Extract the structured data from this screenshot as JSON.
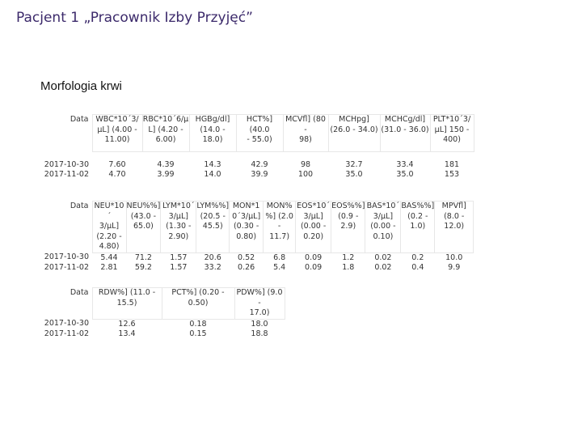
{
  "page": {
    "title": "Pacjent 1 „Pracownik Izby Przyjęć”"
  },
  "section": {
    "title": "Morfologia krwi"
  },
  "tables": [
    {
      "headers": [
        "Data",
        "WBC*10´3/\nµL] (4.00 -\n11.00)",
        "RBC*10´6/µ\nL] (4.20 -\n6.00)",
        "HGBg/dl]\n(14.0 - 18.0)",
        "HCT%] (40.0\n- 55.0)",
        "MCVfl] (80 -\n98)",
        "MCHpg]\n(26.0 - 34.0)",
        "MCHCg/dl]\n(31.0 - 36.0)",
        "PLT*10´3/\nµL] 150 -\n400)"
      ],
      "rows": [
        [
          "2017-10-30",
          "7.60",
          "4.39",
          "14.3",
          "42.9",
          "98",
          "32.7",
          "33.4",
          "181"
        ],
        [
          "2017-11-02",
          "4.70",
          "3.99",
          "14.0",
          "39.9",
          "100",
          "35.0",
          "35.0",
          "153"
        ]
      ]
    },
    {
      "headers": [
        "Data",
        "NEU*10´\n3/µL]\n(2.20 -\n4.80)",
        "NEU%%]\n(43.0 -\n65.0)",
        "LYM*10´\n3/µL]\n(1.30 -\n2.90)",
        "LYM%%]\n(20.5 -\n45.5)",
        "MON*1\n0´3/µL]\n(0.30 -\n0.80)",
        "MON%\n%] (2.0 -\n11.7)",
        "EOS*10´\n3/µL]\n(0.00 -\n0.20)",
        "EOS%%]\n(0.9 -\n2.9)",
        "BAS*10´\n3/µL]\n(0.00 -\n0.10)",
        "BAS%%]\n(0.2 -\n1.0)",
        "MPVfl]\n(8.0 -\n12.0)"
      ],
      "rows": [
        [
          "2017-10-30",
          "5.44",
          "71.2",
          "1.57",
          "20.6",
          "0.52",
          "6.8",
          "0.09",
          "1.2",
          "0.02",
          "0.2",
          "10.0"
        ],
        [
          "2017-11-02",
          "2.81",
          "59.2",
          "1.57",
          "33.2",
          "0.26",
          "5.4",
          "0.09",
          "1.8",
          "0.02",
          "0.4",
          "9.9"
        ]
      ]
    },
    {
      "headers": [
        "Data",
        "RDW%] (11.0 -\n15.5)",
        "PCT%] (0.20 -\n0.50)",
        "PDW%] (9.0 -\n17.0)"
      ],
      "rows": [
        [
          "2017-10-30",
          "12.6",
          "0.18",
          "18.0"
        ],
        [
          "2017-11-02",
          "13.4",
          "0.15",
          "18.8"
        ]
      ]
    }
  ]
}
